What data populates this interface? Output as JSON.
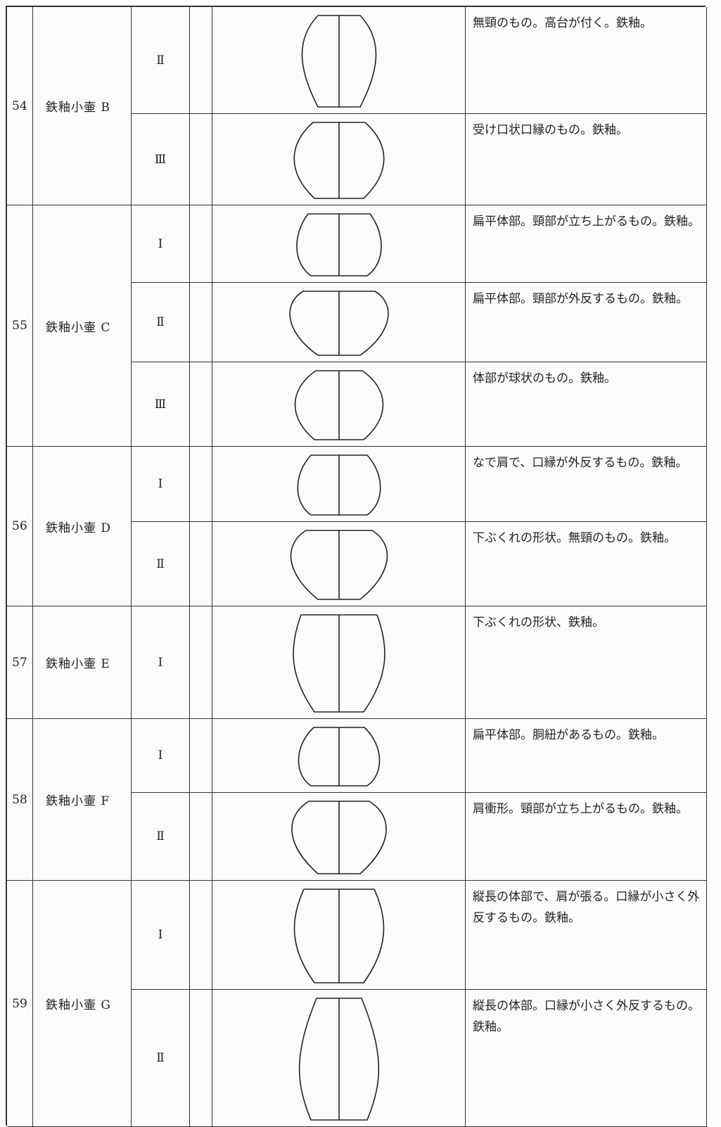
{
  "table": {
    "rows": [
      {
        "number": "54",
        "name": "鉄釉小壷 B",
        "types": [
          {
            "type": "Ⅱ",
            "description": "無頸のもの。高台が付く。鉄釉。"
          },
          {
            "type": "Ⅲ",
            "description": "受け口状口縁のもの。鉄釉。"
          }
        ]
      },
      {
        "number": "55",
        "name": "鉄釉小壷 C",
        "types": [
          {
            "type": "Ⅰ",
            "description": "扁平体部。頸部が立ち上がるもの。鉄釉。"
          },
          {
            "type": "Ⅱ",
            "description": "扁平体部。頸部が外反するもの。鉄釉。"
          },
          {
            "type": "Ⅲ",
            "description": "体部が球状のもの。鉄釉。"
          }
        ]
      },
      {
        "number": "56",
        "name": "鉄釉小壷 D",
        "types": [
          {
            "type": "Ⅰ",
            "description": "なで肩で、口縁が外反するもの。鉄釉。"
          },
          {
            "type": "Ⅱ",
            "description": "下ぶくれの形状。無頸のもの。鉄釉。"
          }
        ]
      },
      {
        "number": "57",
        "name": "鉄釉小壷 E",
        "types": [
          {
            "type": "Ⅰ",
            "description": "下ぶくれの形状、鉄釉。"
          }
        ]
      },
      {
        "number": "58",
        "name": "鉄釉小壷 F",
        "types": [
          {
            "type": "Ⅰ",
            "description": "扁平体部。胴紐があるもの。鉄釉。"
          },
          {
            "type": "Ⅱ",
            "description": "肩衝形。頸部が立ち上がるもの。鉄釉。"
          }
        ]
      },
      {
        "number": "59",
        "name": "鉄釉小壷 G",
        "types": [
          {
            "type": "Ⅰ",
            "description": "縦長の体部で、肩が張る。口縁が小さく外反するもの。鉄釉。"
          },
          {
            "type": "Ⅱ",
            "description": "縦長の体部。口縁が小さく外反するもの。鉄釉。"
          }
        ]
      }
    ]
  }
}
